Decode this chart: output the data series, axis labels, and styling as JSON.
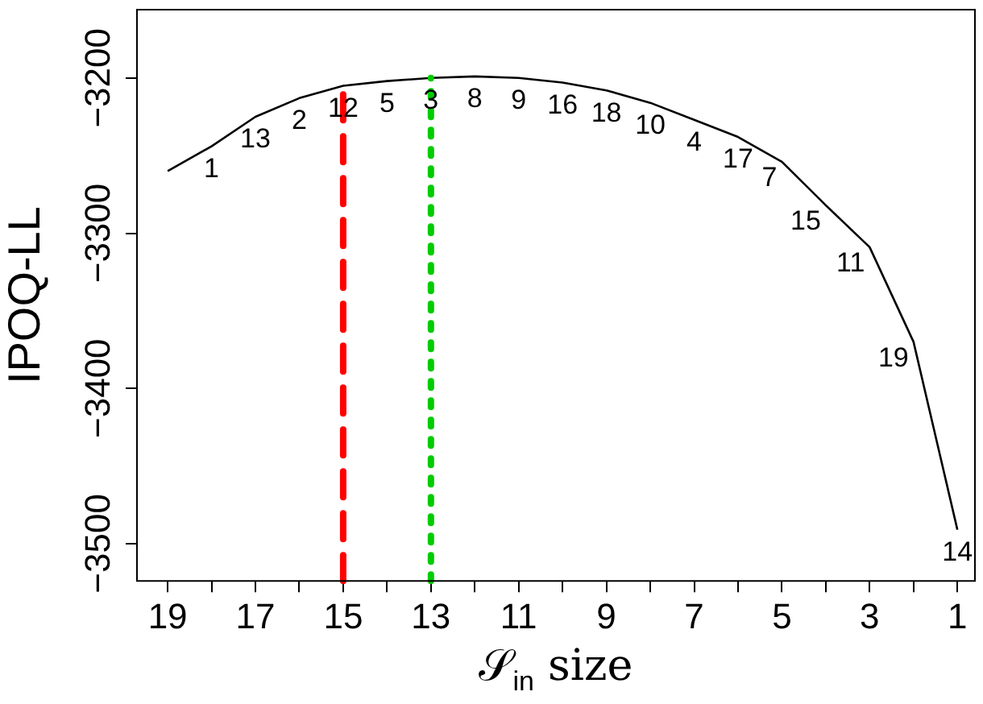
{
  "chart_data": {
    "type": "line",
    "xlabel": "𝒮$_{in}$ size",
    "ylabel": "IPOQ-LL",
    "x": [
      19,
      18,
      17,
      16,
      15,
      14,
      13,
      12,
      11,
      10,
      9,
      8,
      7,
      6,
      5,
      4,
      3,
      2,
      1
    ],
    "series": [
      {
        "color": "#000000",
        "values": [
          -3260,
          -3244,
          -3225,
          -3213,
          -3205,
          -3202,
          -3200,
          -3199,
          -3200,
          -3203,
          -3208,
          -3216,
          -3227,
          -3238,
          -3254,
          -3282,
          -3309,
          -3370,
          -3491
        ]
      }
    ],
    "xlim": [
      19.7,
      0.6
    ],
    "xticks": [
      19,
      {
        "value": 18,
        "label": null
      },
      17,
      {
        "value": 16,
        "label": null
      },
      15,
      {
        "value": 14,
        "label": null
      },
      13,
      {
        "value": 12,
        "label": null
      },
      11,
      {
        "value": 10,
        "label": null
      },
      9,
      {
        "value": 8,
        "label": null
      },
      7,
      {
        "value": 6,
        "label": null
      },
      5,
      {
        "value": 4,
        "label": null
      },
      3,
      {
        "value": 2,
        "label": null
      },
      1
    ],
    "ylim": [
      -3524,
      -3156
    ],
    "yticks": [
      -3500,
      -3400,
      -3300,
      -3200
    ],
    "ref_lines": [
      {
        "axis": "x",
        "value": 15,
        "color": "#ff0000",
        "line_style": "dashed"
      },
      {
        "axis": "x",
        "value": 13,
        "color": "#00cc00",
        "line_style": "dotted"
      }
    ],
    "annotations": [
      {
        "text": "1",
        "x": 18,
        "y": -3244
      },
      {
        "text": "13",
        "x": 17,
        "y": -3225
      },
      {
        "text": "2",
        "x": 16,
        "y": -3213
      },
      {
        "text": "12",
        "x": 15,
        "y": -3205
      },
      {
        "text": "5",
        "x": 14,
        "y": -3202
      },
      {
        "text": "3",
        "x": 13,
        "y": -3200
      },
      {
        "text": "8",
        "x": 12,
        "y": -3199
      },
      {
        "text": "9",
        "x": 11,
        "y": -3200
      },
      {
        "text": "16",
        "x": 10,
        "y": -3203
      },
      {
        "text": "18",
        "x": 9,
        "y": -3208
      },
      {
        "text": "10",
        "x": 8,
        "y": -3216
      },
      {
        "text": "4",
        "x": 7,
        "y": -3227
      },
      {
        "text": "17",
        "x": 6,
        "y": -3238
      },
      {
        "text": "7",
        "x": 5,
        "y": -3254
      },
      {
        "text": "15",
        "x": 4,
        "y": -3282
      },
      {
        "text": "11",
        "x": 3,
        "y": -3309
      },
      {
        "text": "19",
        "x": 2,
        "y": -3370
      },
      {
        "text": "14",
        "x": 1,
        "y": -3491
      }
    ],
    "grid": false,
    "legend": false,
    "marker": "none",
    "line_style": "solid"
  }
}
